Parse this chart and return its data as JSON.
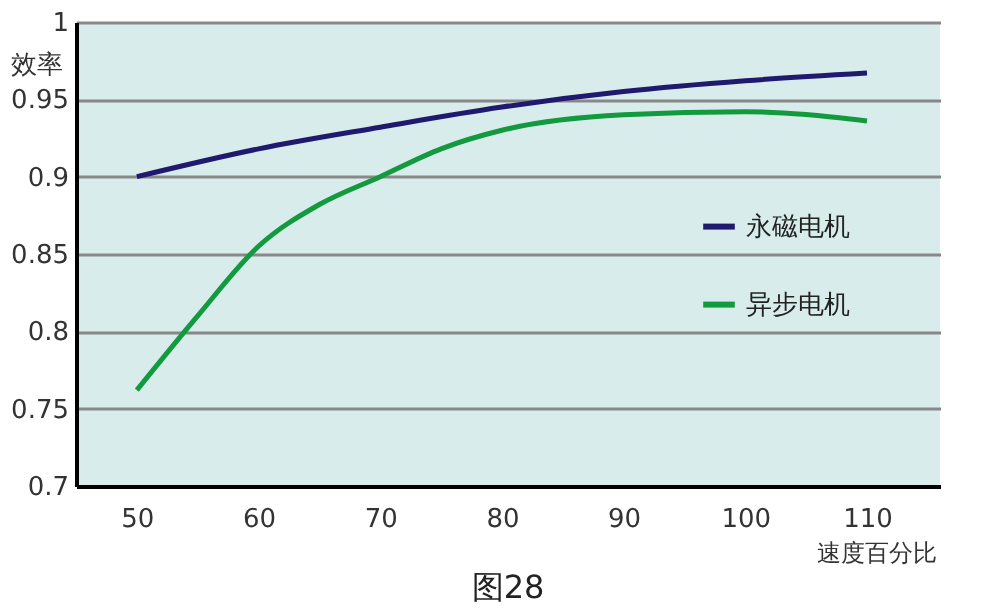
{
  "chart_data": {
    "type": "line",
    "ylabel": "效率",
    "xlabel": "速度百分比",
    "annotations": [
      "图28"
    ],
    "xlim": [
      45,
      116
    ],
    "xticks": [
      50,
      60,
      70,
      80,
      90,
      100,
      110
    ],
    "ylim": [
      0.7,
      1
    ],
    "yticks": [
      0.7,
      0.75,
      0.8,
      0.85,
      0.9,
      0.95,
      1
    ],
    "grid": "y",
    "legend": "right",
    "marker": "none",
    "line_style": "solid",
    "series": [
      {
        "name": "永磁电机",
        "color": "#1f1a6e",
        "x": [
          50,
          60,
          70,
          80,
          90,
          100,
          110
        ],
        "values": [
          0.9,
          0.918,
          0.932,
          0.945,
          0.955,
          0.962,
          0.967
        ]
      },
      {
        "name": "异步电机",
        "color": "#139a3e",
        "x": [
          50,
          55,
          60,
          65,
          70,
          75,
          80,
          90,
          100,
          110
        ],
        "values": [
          0.762,
          0.81,
          0.855,
          0.882,
          0.9,
          0.918,
          0.93,
          0.94,
          0.942,
          0.936
        ]
      }
    ]
  }
}
